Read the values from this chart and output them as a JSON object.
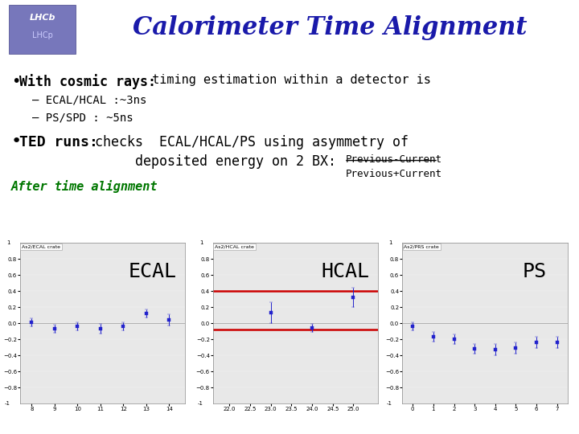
{
  "title": "Calorimeter Time Alignment",
  "title_color": "#1a1aaa",
  "header_bg": "#dde0f0",
  "bullet1_bold": "With cosmic rays:",
  "bullet1_rest": " timing estimation within a detector is",
  "sub1": "ECAL/HCAL :~3ns",
  "sub2": "PS/SPD : ~5ns",
  "bullet2_bold": "TED runs:",
  "bullet2_rest": " checks  ECAL/HCAL/PS using asymmetry of",
  "bullet2_line2": "deposited energy on 2 BX:",
  "fraction_num": "Previous-Current",
  "fraction_den": "Previous+Current",
  "after_label": "After time alignment",
  "after_label_color": "#007700",
  "ecal_label": "ECAL",
  "hcal_label": "HCAL",
  "ps_label": "PS",
  "ecal_crate_label": "As2/ECAL crate",
  "hcal_crate_label": "As2/HCAL crate",
  "ps_crate_label": "As2/PRS crate",
  "ecal_x": [
    8,
    9,
    10,
    11,
    12,
    13,
    14
  ],
  "ecal_y": [
    0.01,
    -0.07,
    -0.04,
    -0.07,
    -0.04,
    0.12,
    0.04
  ],
  "ecal_ye": [
    0.05,
    0.05,
    0.05,
    0.06,
    0.05,
    0.05,
    0.07
  ],
  "ecal_xlim": [
    7.5,
    14.7
  ],
  "ecal_ylim": [
    -1.0,
    1.0
  ],
  "ecal_yticks": [
    -0.8,
    -0.6,
    -0.4,
    -0.2,
    0,
    0.2,
    0.4,
    0.6,
    0.8
  ],
  "ecal_xticks": [
    8,
    9,
    10,
    11,
    12,
    13,
    14
  ],
  "hcal_x": [
    22,
    22.5,
    23,
    23.5,
    24,
    24.5,
    25
  ],
  "hcal_y": [
    null,
    null,
    0.13,
    null,
    -0.06,
    null,
    0.32
  ],
  "hcal_ye": [
    null,
    null,
    0.13,
    null,
    0.05,
    null,
    0.12
  ],
  "hcal_xlim": [
    21.6,
    25.6
  ],
  "hcal_ylim": [
    -1.0,
    1.0
  ],
  "hcal_yticks": [
    -0.8,
    -0.6,
    -0.4,
    -0.2,
    0,
    0.2,
    0.4,
    0.6,
    0.8
  ],
  "hcal_xticks": [
    22,
    22.5,
    23,
    23.5,
    24,
    24.5,
    25
  ],
  "hcal_hline1": 0.4,
  "hcal_hline2": -0.08,
  "hcal_hline_color": "#cc0000",
  "ps_x": [
    0,
    1,
    2,
    3,
    4,
    5,
    6,
    7
  ],
  "ps_y": [
    -0.04,
    -0.17,
    -0.2,
    -0.32,
    -0.33,
    -0.31,
    -0.24,
    -0.24
  ],
  "ps_ye": [
    0.05,
    0.06,
    0.06,
    0.06,
    0.07,
    0.07,
    0.07,
    0.07
  ],
  "ps_xlim": [
    -0.5,
    7.5
  ],
  "ps_ylim": [
    -1.0,
    1.0
  ],
  "ps_yticks": [
    -0.8,
    -0.6,
    -0.4,
    -0.2,
    0,
    0.2,
    0.4,
    0.6,
    0.8
  ],
  "ps_xticks": [
    0,
    1,
    2,
    3,
    4,
    5,
    6,
    7
  ],
  "point_color": "#2222cc",
  "point_size": 3,
  "bg_color": "#ffffff",
  "plot_bg": "#e8e8e8",
  "sep_color": "#222255",
  "bottom_line_color": "#111111"
}
